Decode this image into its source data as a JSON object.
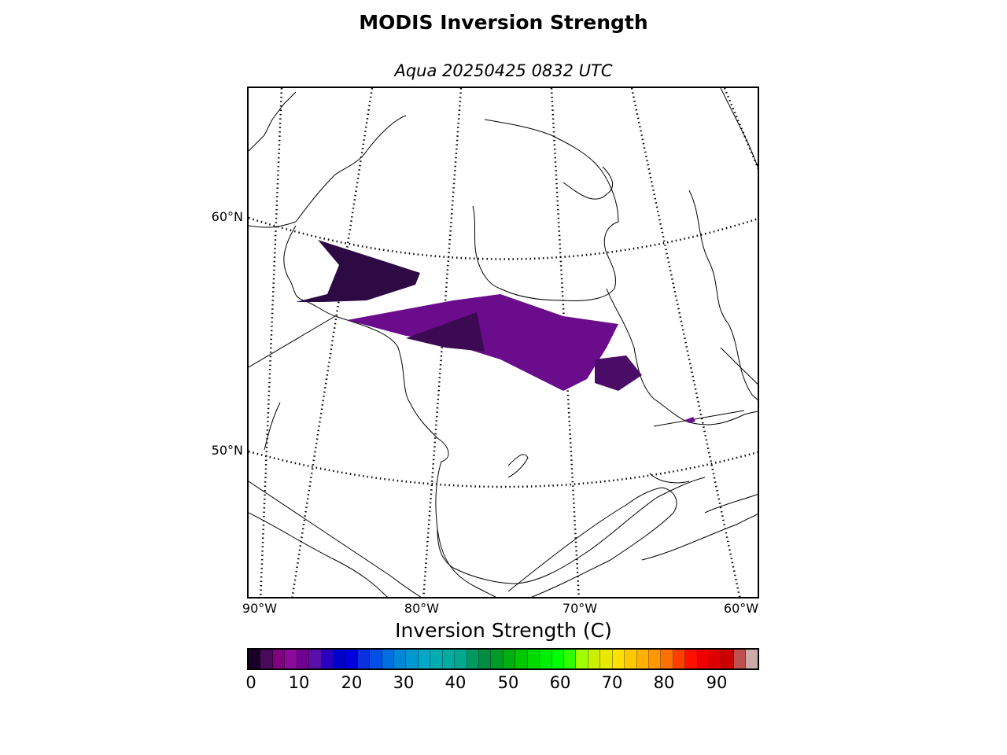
{
  "title": "MODIS Inversion Strength",
  "subtitle": "Aqua 20250425 0832 UTC",
  "map": {
    "lat_labels": [
      "60°N",
      "50°N"
    ],
    "lon_labels": [
      "90°W",
      "80°W",
      "70°W",
      "60°W"
    ],
    "colors": {
      "coastline": "#000000",
      "graticule": "#000000",
      "data_dark": "#2e0a45",
      "data_main": "#6a0c8c"
    }
  },
  "colorbar": {
    "label": "Inversion Strength (C)",
    "ticks": [
      "0",
      "10",
      "20",
      "30",
      "40",
      "50",
      "60",
      "70",
      "80",
      "90"
    ],
    "colors": [
      "#1a0026",
      "#4a0a5c",
      "#800080",
      "#8a0a9a",
      "#700090",
      "#5a10a8",
      "#2a00c0",
      "#0000cc",
      "#0000dd",
      "#0a30e0",
      "#0050e8",
      "#0070e0",
      "#0088d8",
      "#0098d0",
      "#00a8c8",
      "#00acb0",
      "#00aca0",
      "#00a890",
      "#009a60",
      "#008c40",
      "#009a28",
      "#00b010",
      "#00c800",
      "#00dc00",
      "#00ee00",
      "#00ff00",
      "#30ff00",
      "#a0ff00",
      "#ccee00",
      "#e8e800",
      "#ffe000",
      "#ffc800",
      "#ffb000",
      "#ff9800",
      "#ff7000",
      "#ff4000",
      "#ff1000",
      "#ee0000",
      "#dd0000",
      "#cc0000",
      "#c05050",
      "#ccaaaa"
    ]
  }
}
